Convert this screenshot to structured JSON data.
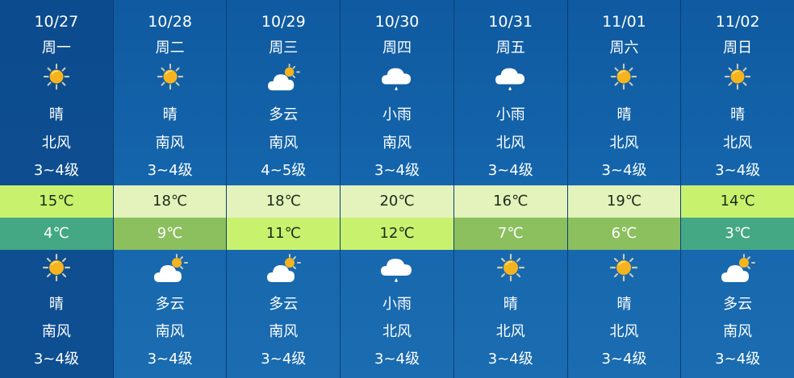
{
  "colors": {
    "band_lime": "#c8f26e",
    "band_pale": "#e3f3bb",
    "band_green": "#8cbf5e",
    "band_teal": "#44a884"
  },
  "days": [
    {
      "date": "10/27",
      "weekday": "周一",
      "day_icon": "sun",
      "day_weather": "晴",
      "day_wind": "北风",
      "day_level": "3~4级",
      "high": "15℃",
      "high_color": "#c8f26e",
      "low": "4℃",
      "low_color": "#44a884",
      "low_text": "#ffffff",
      "night_icon": "sun",
      "night_weather": "晴",
      "night_wind": "南风",
      "night_level": "3~4级"
    },
    {
      "date": "10/28",
      "weekday": "周二",
      "day_icon": "sun",
      "day_weather": "晴",
      "day_wind": "南风",
      "day_level": "3~4级",
      "high": "18℃",
      "high_color": "#e3f3bb",
      "low": "9℃",
      "low_color": "#8cbf5e",
      "low_text": "#ffffff",
      "night_icon": "cloud-sun",
      "night_weather": "多云",
      "night_wind": "南风",
      "night_level": "3~4级"
    },
    {
      "date": "10/29",
      "weekday": "周三",
      "day_icon": "cloud-sun",
      "day_weather": "多云",
      "day_wind": "南风",
      "day_level": "4~5级",
      "high": "18℃",
      "high_color": "#e3f3bb",
      "low": "11℃",
      "low_color": "#c8f26e",
      "low_text": "#1e2a1a",
      "night_icon": "cloud-sun",
      "night_weather": "多云",
      "night_wind": "南风",
      "night_level": "3~4级"
    },
    {
      "date": "10/30",
      "weekday": "周四",
      "day_icon": "rain",
      "day_weather": "小雨",
      "day_wind": "南风",
      "day_level": "3~4级",
      "high": "20℃",
      "high_color": "#e3f3bb",
      "low": "12℃",
      "low_color": "#c8f26e",
      "low_text": "#1e2a1a",
      "night_icon": "rain",
      "night_weather": "小雨",
      "night_wind": "北风",
      "night_level": "3~4级"
    },
    {
      "date": "10/31",
      "weekday": "周五",
      "day_icon": "rain",
      "day_weather": "小雨",
      "day_wind": "北风",
      "day_level": "3~4级",
      "high": "16℃",
      "high_color": "#e3f3bb",
      "low": "7℃",
      "low_color": "#8cbf5e",
      "low_text": "#ffffff",
      "night_icon": "sun",
      "night_weather": "晴",
      "night_wind": "北风",
      "night_level": "3~4级"
    },
    {
      "date": "11/01",
      "weekday": "周六",
      "day_icon": "sun",
      "day_weather": "晴",
      "day_wind": "北风",
      "day_level": "3~4级",
      "high": "19℃",
      "high_color": "#e3f3bb",
      "low": "6℃",
      "low_color": "#8cbf5e",
      "low_text": "#ffffff",
      "night_icon": "sun",
      "night_weather": "晴",
      "night_wind": "北风",
      "night_level": "3~4级"
    },
    {
      "date": "11/02",
      "weekday": "周日",
      "day_icon": "sun",
      "day_weather": "晴",
      "day_wind": "北风",
      "day_level": "3~4级",
      "high": "14℃",
      "high_color": "#c8f26e",
      "low": "3℃",
      "low_color": "#44a884",
      "low_text": "#ffffff",
      "night_icon": "cloud-sun",
      "night_weather": "多云",
      "night_wind": "南风",
      "night_level": "3~4级"
    }
  ]
}
